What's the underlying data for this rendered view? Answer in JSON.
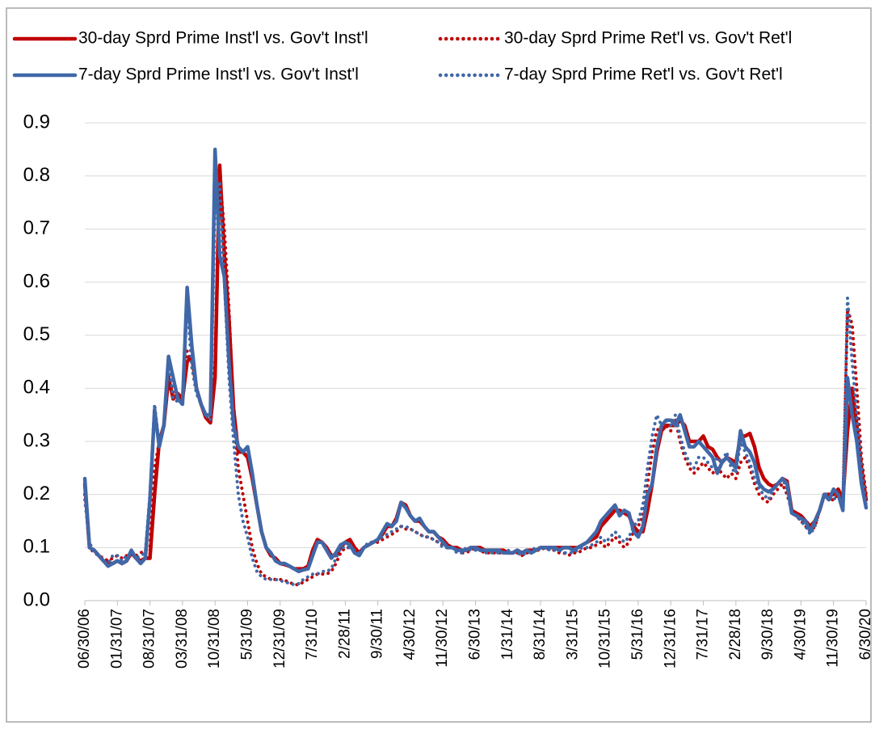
{
  "chart_data": {
    "type": "line",
    "categories": [
      "06/30/06",
      null,
      null,
      null,
      null,
      null,
      null,
      "01/31/07",
      null,
      null,
      null,
      null,
      null,
      null,
      "08/31/07",
      null,
      null,
      null,
      null,
      null,
      null,
      "03/31/08",
      null,
      null,
      null,
      null,
      null,
      null,
      "10/31/08",
      null,
      null,
      null,
      null,
      null,
      null,
      "5/31/09",
      null,
      null,
      null,
      null,
      null,
      null,
      "12/31/09",
      null,
      null,
      null,
      null,
      null,
      null,
      "7/31/10",
      null,
      null,
      null,
      null,
      null,
      null,
      "2/28/11",
      null,
      null,
      null,
      null,
      null,
      null,
      "9/30/11",
      null,
      null,
      null,
      null,
      null,
      null,
      "4/30/12",
      null,
      null,
      null,
      null,
      null,
      null,
      "11/30/12",
      null,
      null,
      null,
      null,
      null,
      null,
      "6/30/13",
      null,
      null,
      null,
      null,
      null,
      null,
      "1/31/14",
      null,
      null,
      null,
      null,
      null,
      null,
      "8/31/14",
      null,
      null,
      null,
      null,
      null,
      null,
      "3/31/15",
      null,
      null,
      null,
      null,
      null,
      null,
      "10/31/15",
      null,
      null,
      null,
      null,
      null,
      null,
      "5/31/16",
      null,
      null,
      null,
      null,
      null,
      null,
      "12/31/16",
      null,
      null,
      null,
      null,
      null,
      null,
      "7/31/17",
      null,
      null,
      null,
      null,
      null,
      null,
      "2/28/18",
      null,
      null,
      null,
      null,
      null,
      null,
      "9/30/18",
      null,
      null,
      null,
      null,
      null,
      null,
      "4/30/19",
      null,
      null,
      null,
      null,
      null,
      null,
      "11/30/19",
      null,
      null,
      null,
      null,
      null,
      null,
      "6/30/20"
    ],
    "series": [
      {
        "name": "30-day Sprd Prime Inst'l vs. Gov't Inst'l",
        "color": "#c00000",
        "style": "solid",
        "values": [
          0.22,
          0.1,
          0.095,
          0.085,
          0.075,
          0.07,
          0.07,
          0.075,
          0.07,
          0.075,
          0.09,
          0.08,
          0.075,
          0.08,
          0.08,
          0.2,
          0.3,
          0.33,
          0.42,
          0.38,
          0.39,
          0.38,
          0.45,
          0.46,
          0.4,
          0.37,
          0.345,
          0.335,
          0.42,
          0.82,
          0.65,
          0.53,
          0.36,
          0.28,
          0.28,
          0.27,
          0.23,
          0.18,
          0.13,
          0.1,
          0.085,
          0.08,
          0.07,
          0.068,
          0.065,
          0.06,
          0.06,
          0.06,
          0.065,
          0.095,
          0.115,
          0.11,
          0.1,
          0.085,
          0.085,
          0.1,
          0.11,
          0.115,
          0.1,
          0.09,
          0.1,
          0.105,
          0.11,
          0.115,
          0.125,
          0.14,
          0.14,
          0.155,
          0.185,
          0.18,
          0.16,
          0.15,
          0.15,
          0.14,
          0.13,
          0.13,
          0.12,
          0.115,
          0.105,
          0.1,
          0.1,
          0.095,
          0.095,
          0.1,
          0.1,
          0.1,
          0.095,
          0.095,
          0.095,
          0.095,
          0.095,
          0.09,
          0.09,
          0.095,
          0.09,
          0.095,
          0.095,
          0.095,
          0.1,
          0.1,
          0.1,
          0.1,
          0.1,
          0.1,
          0.1,
          0.1,
          0.1,
          0.105,
          0.11,
          0.115,
          0.12,
          0.14,
          0.15,
          0.16,
          0.17,
          0.17,
          0.165,
          0.16,
          0.14,
          0.13,
          0.13,
          0.17,
          0.22,
          0.28,
          0.32,
          0.33,
          0.33,
          0.33,
          0.34,
          0.33,
          0.3,
          0.3,
          0.3,
          0.31,
          0.29,
          0.285,
          0.27,
          0.26,
          0.27,
          0.265,
          0.26,
          0.31,
          0.31,
          0.315,
          0.29,
          0.25,
          0.23,
          0.22,
          0.215,
          0.22,
          0.23,
          0.225,
          0.17,
          0.165,
          0.16,
          0.15,
          0.14,
          0.15,
          0.17,
          0.2,
          0.2,
          0.2,
          0.21,
          0.19,
          0.32,
          0.4,
          0.33,
          0.25,
          0.19
        ]
      },
      {
        "name": "30-day Sprd Prime Ret'l vs. Gov't Ret'l",
        "color": "#c00000",
        "style": "dotted",
        "values": [
          0.2,
          0.1,
          0.09,
          0.085,
          0.08,
          0.075,
          0.08,
          0.085,
          0.08,
          0.085,
          0.09,
          0.085,
          0.09,
          0.095,
          0.1,
          0.25,
          0.3,
          0.33,
          0.43,
          0.39,
          0.38,
          0.37,
          0.47,
          0.45,
          0.4,
          0.37,
          0.35,
          0.34,
          0.45,
          0.8,
          0.7,
          0.55,
          0.35,
          0.25,
          0.2,
          0.15,
          0.1,
          0.07,
          0.05,
          0.045,
          0.04,
          0.04,
          0.04,
          0.038,
          0.035,
          0.03,
          0.03,
          0.035,
          0.04,
          0.045,
          0.05,
          0.05,
          0.05,
          0.055,
          0.07,
          0.09,
          0.1,
          0.1,
          0.095,
          0.09,
          0.1,
          0.105,
          0.11,
          0.11,
          0.115,
          0.12,
          0.125,
          0.13,
          0.14,
          0.135,
          0.135,
          0.13,
          0.125,
          0.12,
          0.12,
          0.115,
          0.11,
          0.105,
          0.1,
          0.1,
          0.095,
          0.09,
          0.09,
          0.095,
          0.1,
          0.095,
          0.09,
          0.09,
          0.09,
          0.09,
          0.09,
          0.09,
          0.09,
          0.09,
          0.085,
          0.09,
          0.09,
          0.095,
          0.095,
          0.1,
          0.095,
          0.095,
          0.09,
          0.09,
          0.085,
          0.09,
          0.09,
          0.095,
          0.1,
          0.1,
          0.105,
          0.11,
          0.1,
          0.11,
          0.12,
          0.11,
          0.1,
          0.11,
          0.13,
          0.14,
          0.16,
          0.22,
          0.28,
          0.32,
          0.33,
          0.33,
          0.32,
          0.34,
          0.3,
          0.27,
          0.25,
          0.24,
          0.25,
          0.26,
          0.25,
          0.24,
          0.25,
          0.24,
          0.23,
          0.24,
          0.23,
          0.26,
          0.27,
          0.25,
          0.22,
          0.2,
          0.19,
          0.185,
          0.2,
          0.21,
          0.22,
          0.2,
          0.17,
          0.16,
          0.15,
          0.14,
          0.13,
          0.14,
          0.17,
          0.2,
          0.19,
          0.19,
          0.2,
          0.18,
          0.55,
          0.52,
          0.4,
          0.27,
          0.2
        ]
      },
      {
        "name": "7-day Sprd Prime Inst'l vs. Gov't Inst'l",
        "color": "#4068a8",
        "style": "solid",
        "values": [
          0.23,
          0.1,
          0.095,
          0.085,
          0.075,
          0.065,
          0.07,
          0.075,
          0.07,
          0.075,
          0.095,
          0.08,
          0.07,
          0.08,
          0.19,
          0.36,
          0.29,
          0.33,
          0.46,
          0.42,
          0.38,
          0.37,
          0.59,
          0.48,
          0.4,
          0.37,
          0.35,
          0.35,
          0.85,
          0.65,
          0.61,
          0.45,
          0.33,
          0.29,
          0.28,
          0.29,
          0.24,
          0.18,
          0.13,
          0.1,
          0.09,
          0.075,
          0.07,
          0.07,
          0.065,
          0.06,
          0.055,
          0.058,
          0.06,
          0.085,
          0.11,
          0.11,
          0.095,
          0.08,
          0.09,
          0.105,
          0.11,
          0.105,
          0.09,
          0.085,
          0.1,
          0.105,
          0.11,
          0.115,
          0.13,
          0.145,
          0.14,
          0.15,
          0.185,
          0.175,
          0.16,
          0.15,
          0.155,
          0.14,
          0.13,
          0.13,
          0.12,
          0.11,
          0.1,
          0.1,
          0.095,
          0.095,
          0.095,
          0.1,
          0.1,
          0.095,
          0.095,
          0.095,
          0.095,
          0.095,
          0.09,
          0.09,
          0.09,
          0.095,
          0.09,
          0.095,
          0.09,
          0.095,
          0.1,
          0.1,
          0.1,
          0.1,
          0.095,
          0.1,
          0.1,
          0.095,
          0.1,
          0.105,
          0.11,
          0.12,
          0.13,
          0.15,
          0.16,
          0.17,
          0.18,
          0.16,
          0.17,
          0.165,
          0.13,
          0.12,
          0.14,
          0.2,
          0.22,
          0.29,
          0.33,
          0.34,
          0.34,
          0.33,
          0.35,
          0.32,
          0.29,
          0.29,
          0.3,
          0.29,
          0.28,
          0.27,
          0.24,
          0.26,
          0.27,
          0.26,
          0.25,
          0.32,
          0.29,
          0.28,
          0.26,
          0.22,
          0.21,
          0.205,
          0.21,
          0.22,
          0.23,
          0.22,
          0.165,
          0.16,
          0.155,
          0.15,
          0.13,
          0.15,
          0.17,
          0.2,
          0.19,
          0.21,
          0.2,
          0.17,
          0.42,
          0.35,
          0.3,
          0.22,
          0.175
        ]
      },
      {
        "name": "7-day Sprd Prime Ret'l vs. Gov't Ret'l",
        "color": "#4068a8",
        "style": "dotted",
        "values": [
          0.19,
          0.11,
          0.09,
          0.085,
          0.075,
          0.07,
          0.085,
          0.085,
          0.075,
          0.085,
          0.09,
          0.08,
          0.085,
          0.09,
          0.2,
          0.37,
          0.29,
          0.33,
          0.45,
          0.38,
          0.375,
          0.37,
          0.56,
          0.44,
          0.39,
          0.37,
          0.35,
          0.34,
          0.75,
          0.79,
          0.6,
          0.42,
          0.3,
          0.2,
          0.15,
          0.12,
          0.08,
          0.055,
          0.045,
          0.04,
          0.04,
          0.04,
          0.038,
          0.035,
          0.033,
          0.03,
          0.032,
          0.04,
          0.045,
          0.05,
          0.05,
          0.055,
          0.055,
          0.06,
          0.08,
          0.1,
          0.1,
          0.1,
          0.095,
          0.09,
          0.1,
          0.11,
          0.11,
          0.115,
          0.12,
          0.125,
          0.13,
          0.135,
          0.14,
          0.14,
          0.135,
          0.13,
          0.125,
          0.12,
          0.12,
          0.115,
          0.11,
          0.1,
          0.1,
          0.1,
          0.09,
          0.09,
          0.1,
          0.095,
          0.095,
          0.095,
          0.09,
          0.09,
          0.09,
          0.09,
          0.09,
          0.095,
          0.09,
          0.09,
          0.085,
          0.09,
          0.095,
          0.1,
          0.095,
          0.1,
          0.095,
          0.095,
          0.095,
          0.09,
          0.09,
          0.09,
          0.095,
          0.1,
          0.1,
          0.105,
          0.11,
          0.12,
          0.11,
          0.12,
          0.13,
          0.12,
          0.11,
          0.12,
          0.14,
          0.15,
          0.18,
          0.25,
          0.31,
          0.35,
          0.33,
          0.34,
          0.33,
          0.35,
          0.31,
          0.28,
          0.26,
          0.25,
          0.27,
          0.27,
          0.26,
          0.25,
          0.27,
          0.26,
          0.28,
          0.25,
          0.24,
          0.3,
          0.28,
          0.26,
          0.23,
          0.21,
          0.2,
          0.19,
          0.21,
          0.22,
          0.23,
          0.21,
          0.17,
          0.16,
          0.15,
          0.14,
          0.125,
          0.14,
          0.17,
          0.2,
          0.2,
          0.19,
          0.2,
          0.18,
          0.57,
          0.45,
          0.35,
          0.25,
          0.18
        ]
      }
    ],
    "ylim": [
      0,
      0.9
    ],
    "yticks": [
      {
        "value": 0,
        "label": "0.0"
      },
      0.1,
      0.2,
      0.3,
      0.4,
      0.5,
      0.6,
      0.7,
      0.8,
      0.9
    ],
    "grid": true,
    "legend": "top"
  }
}
